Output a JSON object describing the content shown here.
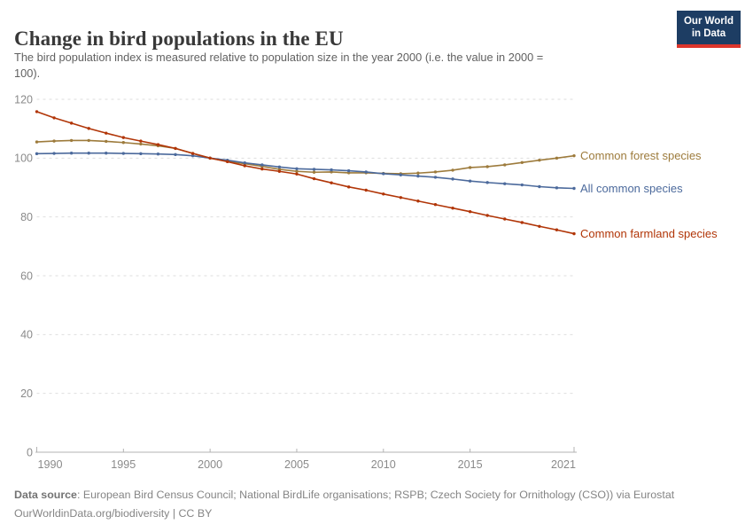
{
  "header": {
    "title": "Change in bird populations in the EU",
    "subtitle_line1": "The bird population index is measured relative to population size in the year 2000 (i.e. the value in 2000 =",
    "subtitle_line2": "100)."
  },
  "logo": {
    "line1": "Our World",
    "line2": "in Data",
    "bg_color": "#1d3d63",
    "accent_color": "#dc352b"
  },
  "footer": {
    "source_label": "Data source",
    "source_text": ": European Bird Census Council; National BirdLife organisations; RSPB; Czech Society for Ornithology (CSO)) via Eurostat",
    "url": "OurWorldinData.org/biodiversity",
    "license": " | CC BY"
  },
  "chart_data": {
    "type": "line",
    "title": "Change in bird populations in the EU",
    "xlabel": "",
    "ylabel": "",
    "xlim": [
      1990,
      2021
    ],
    "ylim": [
      0,
      120
    ],
    "xticks": [
      1990,
      1995,
      2000,
      2005,
      2010,
      2015,
      2021
    ],
    "yticks": [
      0,
      20,
      40,
      60,
      80,
      100,
      120
    ],
    "grid": "horizontal-dashed",
    "legend_position": "end-of-line-labels",
    "x": [
      1990,
      1991,
      1992,
      1993,
      1994,
      1995,
      1996,
      1997,
      1998,
      1999,
      2000,
      2001,
      2002,
      2003,
      2004,
      2005,
      2006,
      2007,
      2008,
      2009,
      2010,
      2011,
      2012,
      2013,
      2014,
      2015,
      2016,
      2017,
      2018,
      2019,
      2020,
      2021
    ],
    "series": [
      {
        "name": "Common forest species",
        "color": "#9d7b3c",
        "values": [
          105.5,
          105.8,
          106.0,
          106.0,
          105.7,
          105.3,
          104.8,
          104.2,
          103.3,
          101.6,
          100.0,
          98.9,
          98.1,
          97.2,
          96.2,
          95.5,
          95.2,
          95.3,
          95.0,
          95.0,
          94.8,
          94.7,
          94.9,
          95.3,
          95.9,
          96.8,
          97.1,
          97.7,
          98.5,
          99.3,
          100.0,
          100.8
        ]
      },
      {
        "name": "All common species",
        "color": "#4c6a9c",
        "values": [
          101.5,
          101.6,
          101.7,
          101.7,
          101.7,
          101.6,
          101.5,
          101.4,
          101.2,
          100.8,
          100.0,
          99.3,
          98.4,
          97.7,
          97.0,
          96.4,
          96.2,
          96.0,
          95.7,
          95.3,
          94.7,
          94.3,
          93.9,
          93.5,
          92.9,
          92.2,
          91.7,
          91.3,
          90.9,
          90.3,
          89.9,
          89.7
        ]
      },
      {
        "name": "Common farmland species",
        "color": "#b13507",
        "values": [
          115.8,
          113.7,
          111.9,
          110.1,
          108.5,
          107.0,
          105.8,
          104.6,
          103.3,
          101.6,
          100.0,
          98.8,
          97.4,
          96.3,
          95.5,
          94.6,
          93.0,
          91.6,
          90.2,
          89.1,
          87.8,
          86.6,
          85.4,
          84.2,
          83.0,
          81.8,
          80.5,
          79.3,
          78.1,
          76.8,
          75.6,
          74.3
        ]
      }
    ],
    "axis_color": "#b3b3b3",
    "grid_color": "#dedede",
    "tick_label_color": "#8a8a8a"
  }
}
